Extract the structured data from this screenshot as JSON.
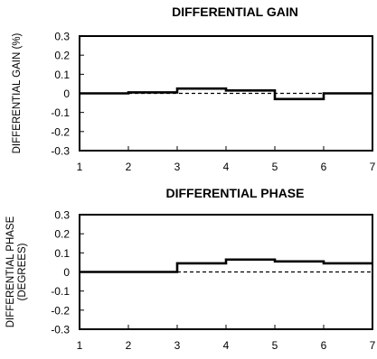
{
  "chart_data": [
    {
      "type": "line",
      "title": "DIFFERENTIAL GAIN",
      "xlabel": "",
      "ylabel": "DIFFERENTIAL GAIN (%)",
      "xlim": [
        1,
        7
      ],
      "ylim": [
        -0.3,
        0.3
      ],
      "x_ticks": [
        "1",
        "2",
        "3",
        "4",
        "5",
        "6",
        "7"
      ],
      "y_ticks": [
        "0.3",
        "0.2",
        "0.1",
        "0",
        "-0.1",
        "-0.2",
        "-0.3"
      ],
      "grid": false,
      "series": [
        {
          "style": "solid-step",
          "x": [
            1,
            2,
            3,
            4,
            5,
            6,
            7
          ],
          "values": [
            0,
            0.005,
            0.025,
            0.015,
            -0.03,
            0,
            0
          ]
        },
        {
          "style": "dashed",
          "x": [
            2,
            6
          ],
          "values": [
            0,
            0
          ]
        }
      ]
    },
    {
      "type": "line",
      "title": "DIFFERENTIAL PHASE",
      "xlabel": "",
      "ylabel": [
        "DIFFERENTIAL PHASE",
        "(DEGREES)"
      ],
      "xlim": [
        1,
        7
      ],
      "ylim": [
        -0.3,
        0.3
      ],
      "x_ticks": [
        "1",
        "2",
        "3",
        "4",
        "5",
        "6",
        "7"
      ],
      "y_ticks": [
        "0.3",
        "0.2",
        "0.1",
        "0",
        "-0.1",
        "-0.2",
        "-0.3"
      ],
      "grid": false,
      "series": [
        {
          "style": "solid-step",
          "x": [
            1,
            2,
            3,
            4,
            5,
            6,
            7
          ],
          "values": [
            0,
            0,
            0.045,
            0.065,
            0.055,
            0.045,
            0.045
          ]
        },
        {
          "style": "dashed",
          "x": [
            3,
            7
          ],
          "values": [
            0,
            0
          ]
        }
      ]
    }
  ]
}
